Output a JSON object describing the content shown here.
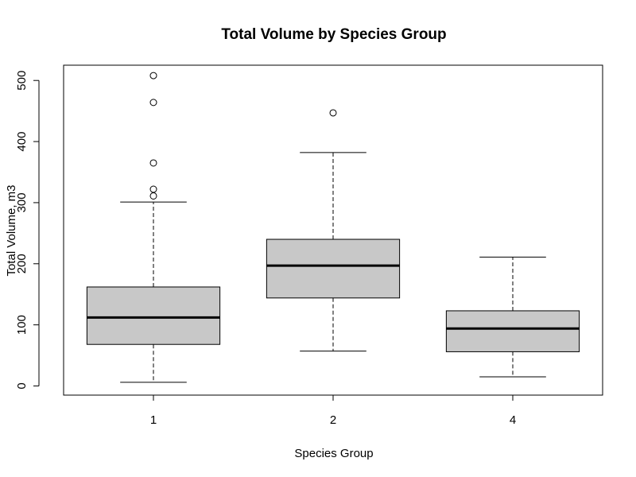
{
  "chart_data": {
    "type": "boxplot",
    "title": "Total Volume by Species Group",
    "xlabel": "Species Group",
    "ylabel": "Total Volume, m3",
    "categories": [
      "1",
      "2",
      "4"
    ],
    "ylim": [
      -15,
      525
    ],
    "yticks": [
      0,
      100,
      200,
      300,
      400,
      500
    ],
    "grid": false,
    "box_fill": "#c8c8c8",
    "boxes": [
      {
        "category": "1",
        "whisker_low": 6,
        "q1": 68,
        "median": 112,
        "q3": 162,
        "whisker_high": 301,
        "outliers": [
          311,
          322,
          365,
          464,
          508
        ]
      },
      {
        "category": "2",
        "whisker_low": 57,
        "q1": 144,
        "median": 197,
        "q3": 240,
        "whisker_high": 382,
        "outliers": [
          447
        ]
      },
      {
        "category": "4",
        "whisker_low": 15,
        "q1": 56,
        "median": 94,
        "q3": 123,
        "whisker_high": 211,
        "outliers": []
      }
    ]
  }
}
